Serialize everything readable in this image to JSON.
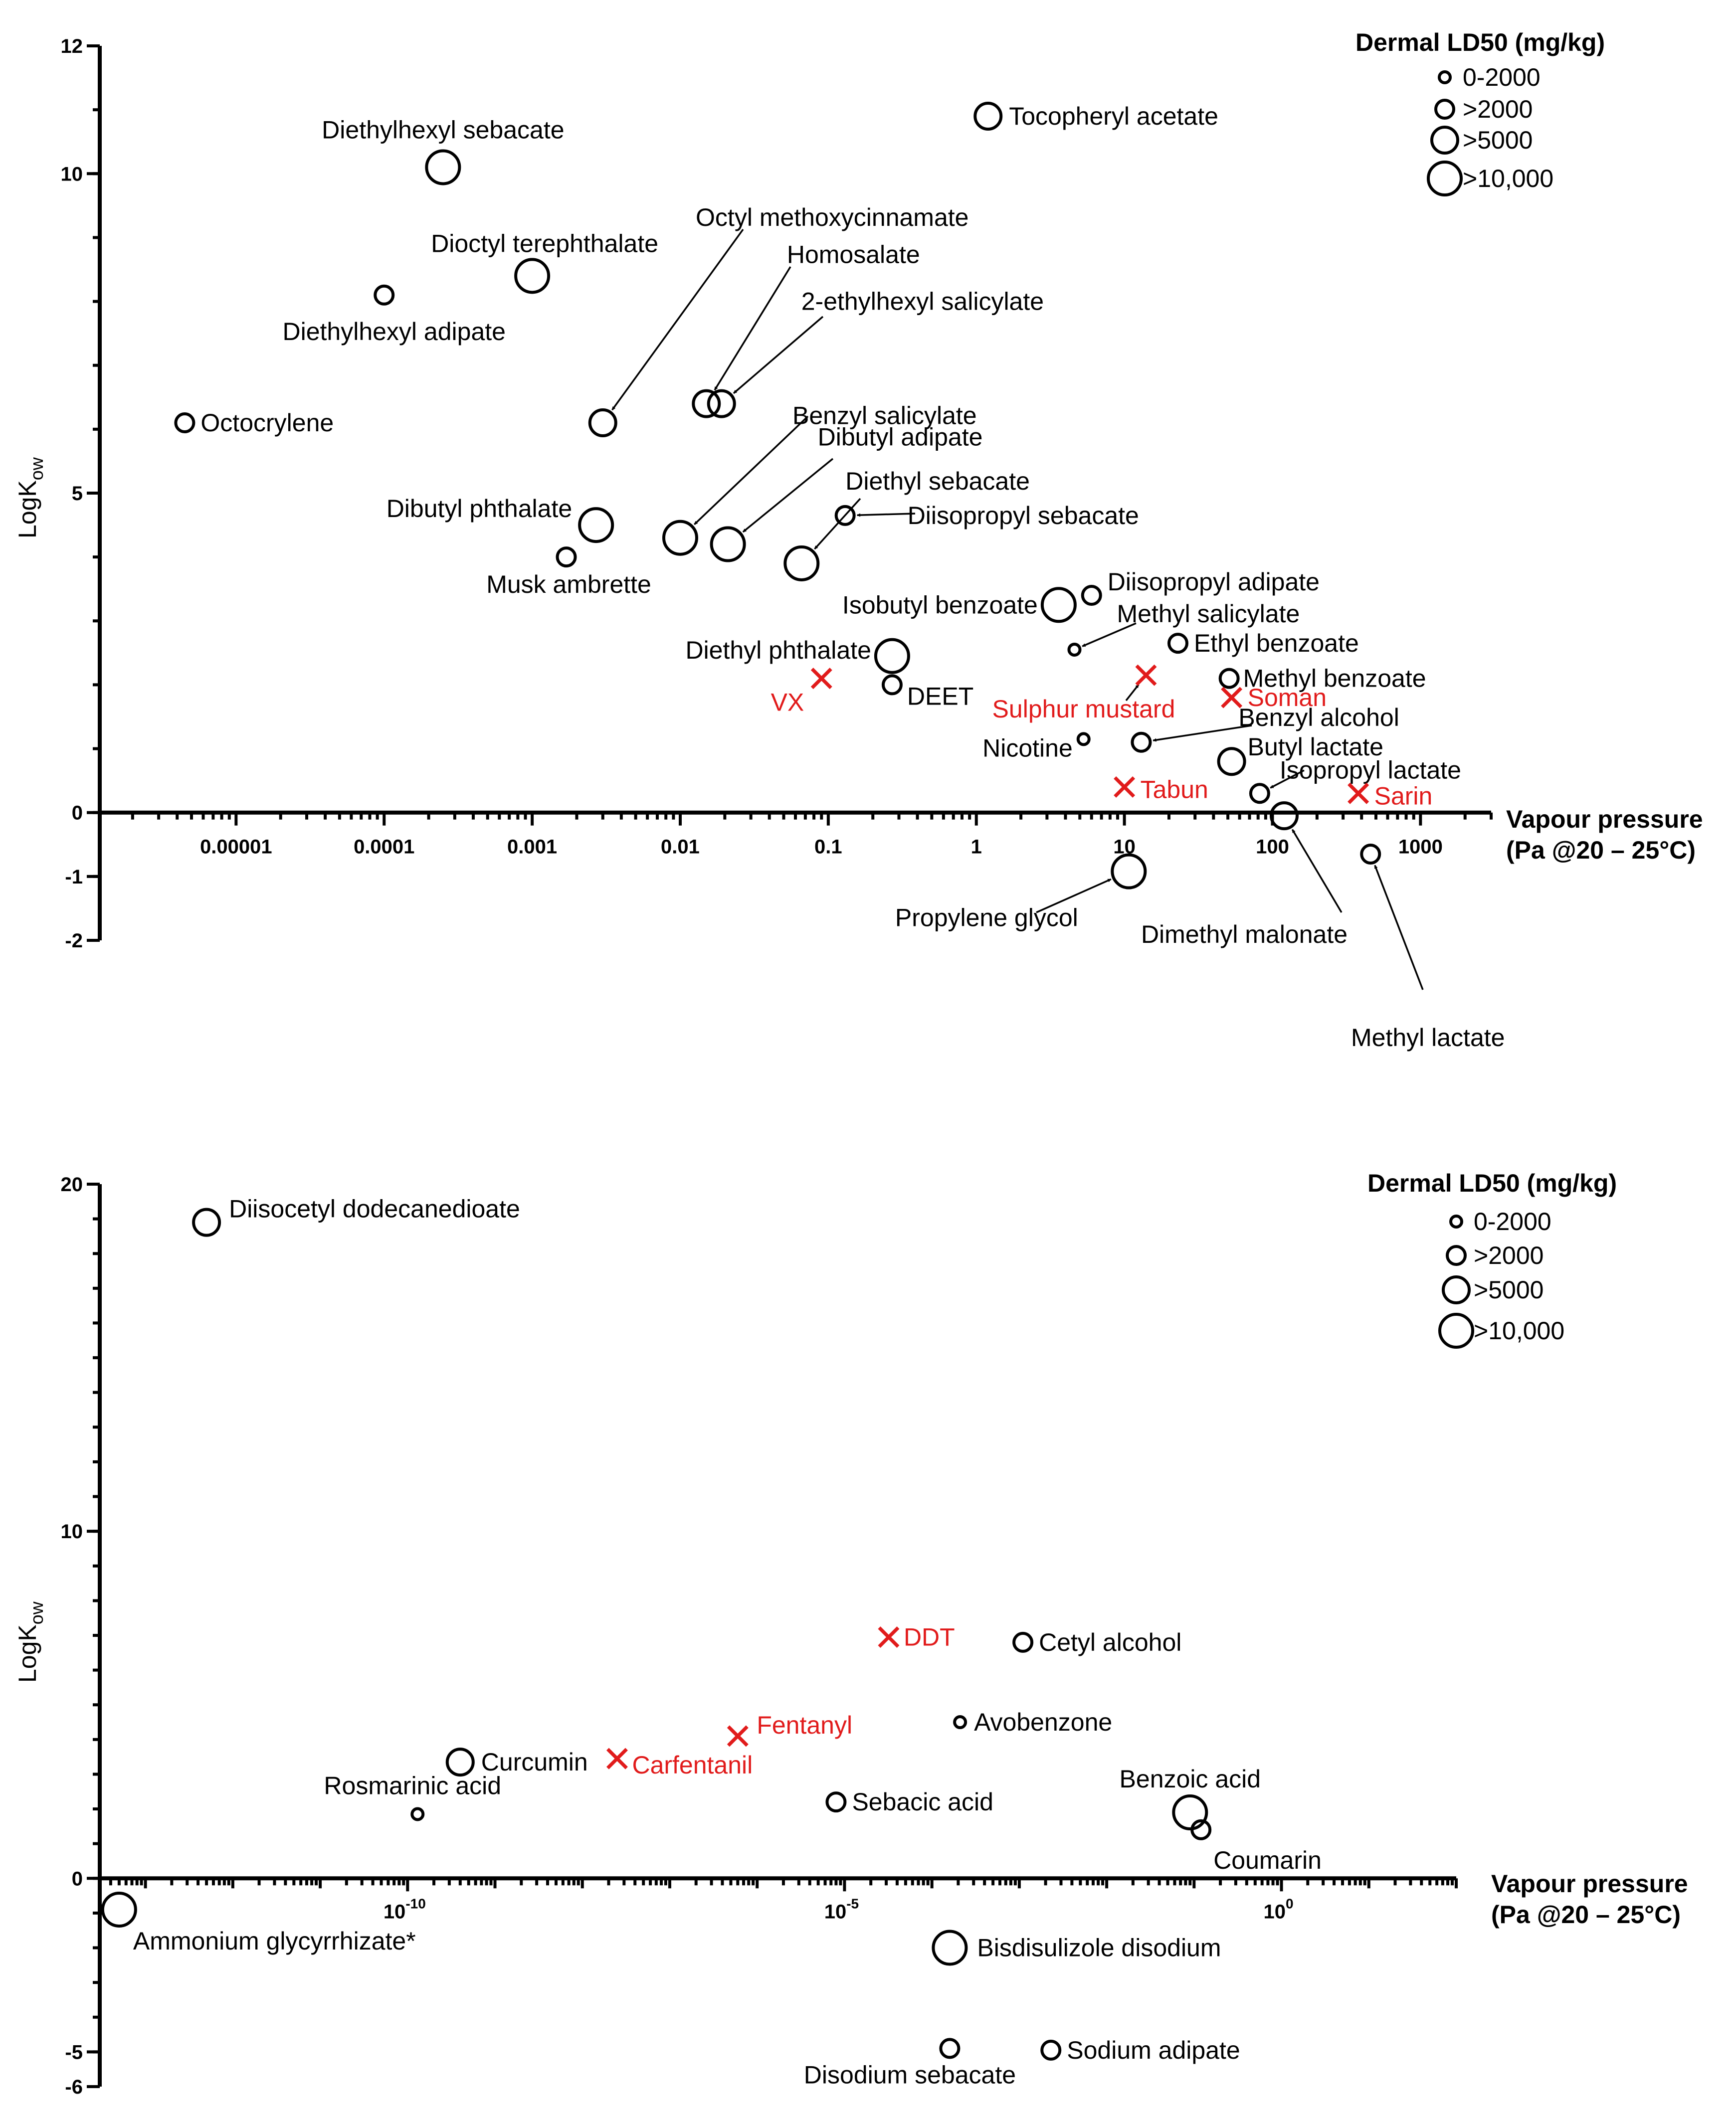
{
  "chart_data": [
    {
      "type": "scatter",
      "xlabel": "Vapour pressure",
      "xlabel_line2": "(Pa  @20 – 25°C)",
      "ylabel": "LogK",
      "ylabel_sub": "ow",
      "x_scale": "log",
      "xlim": [
        1.2e-06,
        3000
      ],
      "ylim": [
        -2,
        12
      ],
      "x_ticks": [
        {
          "value": 1e-05,
          "label": "0.00001"
        },
        {
          "value": 0.0001,
          "label": "0.0001"
        },
        {
          "value": 0.001,
          "label": "0.001"
        },
        {
          "value": 0.01,
          "label": "0.01"
        },
        {
          "value": 0.1,
          "label": "0.1"
        },
        {
          "value": 1,
          "label": "1"
        },
        {
          "value": 10,
          "label": "10"
        },
        {
          "value": 100,
          "label": "100"
        },
        {
          "value": 1000,
          "label": "1000"
        }
      ],
      "y_ticks": [
        {
          "value": 12,
          "label": "12"
        },
        {
          "value": 10,
          "label": "10"
        },
        {
          "value": 5,
          "label": "5"
        },
        {
          "value": 0,
          "label": "0"
        },
        {
          "value": -1,
          "label": "-1"
        },
        {
          "value": -2,
          "label": "-2"
        }
      ],
      "legend": {
        "title": "Dermal LD50  (mg/kg)",
        "entries": [
          "0-2000",
          ">2000",
          ">5000",
          ">10,000"
        ],
        "position": "top-right"
      },
      "points": [
        {
          "name": "Diethylhexyl sebacate",
          "x": 0.00025,
          "y": 10.1,
          "size": 4
        },
        {
          "name": "Tocopheryl acetate",
          "x": 1.2,
          "y": 10.9,
          "size": 3
        },
        {
          "name": "Dioctyl terephthalate",
          "x": 0.001,
          "y": 8.4,
          "size": 4
        },
        {
          "name": "Diethylhexyl adipate",
          "x": 0.0001,
          "y": 8.1,
          "size": 2
        },
        {
          "name": "Octocrylene",
          "x": 4.5e-06,
          "y": 6.1,
          "size": 2
        },
        {
          "name": "Octyl methoxycinnamate",
          "x": 0.003,
          "y": 6.1,
          "size": 3
        },
        {
          "name": "Homosalate",
          "x": 0.015,
          "y": 6.4,
          "size": 3
        },
        {
          "name": "2-ethylhexyl salicylate",
          "x": 0.019,
          "y": 6.4,
          "size": 3
        },
        {
          "name": "Benzyl salicylate",
          "x": 0.01,
          "y": 4.3,
          "size": 4
        },
        {
          "name": "Dibutyl adipate",
          "x": 0.021,
          "y": 4.2,
          "size": 4
        },
        {
          "name": "Diethyl sebacate",
          "x": 0.066,
          "y": 3.9,
          "size": 4
        },
        {
          "name": "Diisopropyl sebacate",
          "x": 0.13,
          "y": 4.65,
          "size": 2
        },
        {
          "name": "Dibutyl phthalate",
          "x": 0.0027,
          "y": 4.5,
          "size": 4
        },
        {
          "name": "Musk ambrette",
          "x": 0.0017,
          "y": 4.0,
          "size": 2
        },
        {
          "name": "Isobutyl benzoate",
          "x": 3.6,
          "y": 3.25,
          "size": 4
        },
        {
          "name": "Diisopropyl adipate",
          "x": 6,
          "y": 3.4,
          "size": 2
        },
        {
          "name": "Methyl salicylate",
          "x": 4.6,
          "y": 2.55,
          "size": 1
        },
        {
          "name": "Ethyl benzoate",
          "x": 23,
          "y": 2.65,
          "size": 2
        },
        {
          "name": "Methyl benzoate",
          "x": 51,
          "y": 2.1,
          "size": 2
        },
        {
          "name": "Diethyl phthalate",
          "x": 0.27,
          "y": 2.45,
          "size": 4
        },
        {
          "name": "DEET",
          "x": 0.27,
          "y": 2.0,
          "size": 2
        },
        {
          "name": "Nicotine",
          "x": 5.3,
          "y": 1.15,
          "size": 1
        },
        {
          "name": "Benzyl alcohol",
          "x": 13,
          "y": 1.1,
          "size": 2
        },
        {
          "name": "Butyl lactate",
          "x": 53,
          "y": 0.8,
          "size": 3
        },
        {
          "name": "Isopropyl lactate",
          "x": 82,
          "y": 0.3,
          "size": 2
        },
        {
          "name": "Dimethyl malonate",
          "x": 120,
          "y": -0.05,
          "size": 3
        },
        {
          "name": "Methyl lactate",
          "x": 460,
          "y": -0.65,
          "size": 2
        },
        {
          "name": "Propylene glycol",
          "x": 10.7,
          "y": -0.92,
          "size": 4
        }
      ],
      "agents": [
        {
          "name": "VX",
          "x": 0.09,
          "y": 2.1
        },
        {
          "name": "Sulphur mustard",
          "x": 14,
          "y": 2.15
        },
        {
          "name": "Soman",
          "x": 53,
          "y": 1.8
        },
        {
          "name": "Tabun",
          "x": 10,
          "y": 0.4
        },
        {
          "name": "Sarin",
          "x": 380,
          "y": 0.3
        }
      ]
    },
    {
      "type": "scatter",
      "xlabel": "Vapour pressure",
      "xlabel_line2": "(Pa  @20 – 25°C)",
      "ylabel": "LogK",
      "ylabel_sub": "ow",
      "x_scale": "log",
      "xlim": [
        3e-14,
        100
      ],
      "ylim": [
        -6,
        20
      ],
      "x_ticks": [
        {
          "value": 1e-10,
          "base": "10",
          "exp": "-10"
        },
        {
          "value": 1e-05,
          "base": "10",
          "exp": "-5"
        },
        {
          "value": 1,
          "base": "10",
          "exp": "0"
        }
      ],
      "y_ticks": [
        {
          "value": 20,
          "label": "20"
        },
        {
          "value": 10,
          "label": "10"
        },
        {
          "value": 0,
          "label": "0"
        },
        {
          "value": -5,
          "label": "-5"
        },
        {
          "value": -6,
          "label": "-6"
        }
      ],
      "legend": {
        "title": "Dermal LD50  (mg/kg)",
        "entries": [
          "0-2000",
          ">2000",
          ">5000",
          ">10,000"
        ],
        "position": "top-right"
      },
      "points": [
        {
          "name": "Diisocetyl dodecanedioate",
          "x": 5e-13,
          "y": 18.9,
          "size": 3
        },
        {
          "name": "Curcumin",
          "x": 4e-10,
          "y": 3.35,
          "size": 3
        },
        {
          "name": "Rosmarinic acid",
          "x": 1.3e-10,
          "y": 1.85,
          "size": 1
        },
        {
          "name": "Sebacic acid",
          "x": 8e-06,
          "y": 2.2,
          "size": 2
        },
        {
          "name": "Cetyl alcohol",
          "x": 0.0011,
          "y": 6.8,
          "size": 2
        },
        {
          "name": "Avobenzone",
          "x": 0.00021,
          "y": 4.5,
          "size": 1
        },
        {
          "name": "Benzoic acid",
          "x": 0.09,
          "y": 1.9,
          "size": 4
        },
        {
          "name": "Coumarin",
          "x": 0.12,
          "y": 1.4,
          "size": 2
        },
        {
          "name": "Ammonium glycyrrhizate*",
          "x": 5e-14,
          "y": -0.9,
          "size": 4
        },
        {
          "name": "Bisdisulizole disodium",
          "x": 0.00016,
          "y": -2.0,
          "size": 4
        },
        {
          "name": "Disodium sebacate",
          "x": 0.00016,
          "y": -4.9,
          "size": 2
        },
        {
          "name": "Sodium adipate",
          "x": 0.0023,
          "y": -4.95,
          "size": 2
        }
      ],
      "agents": [
        {
          "name": "DDT",
          "x": 3.2e-05,
          "y": 6.95
        },
        {
          "name": "Fentanyl",
          "x": 6e-07,
          "y": 4.1
        },
        {
          "name": "Carfentanil",
          "x": 2.5e-08,
          "y": 3.45
        }
      ]
    }
  ]
}
